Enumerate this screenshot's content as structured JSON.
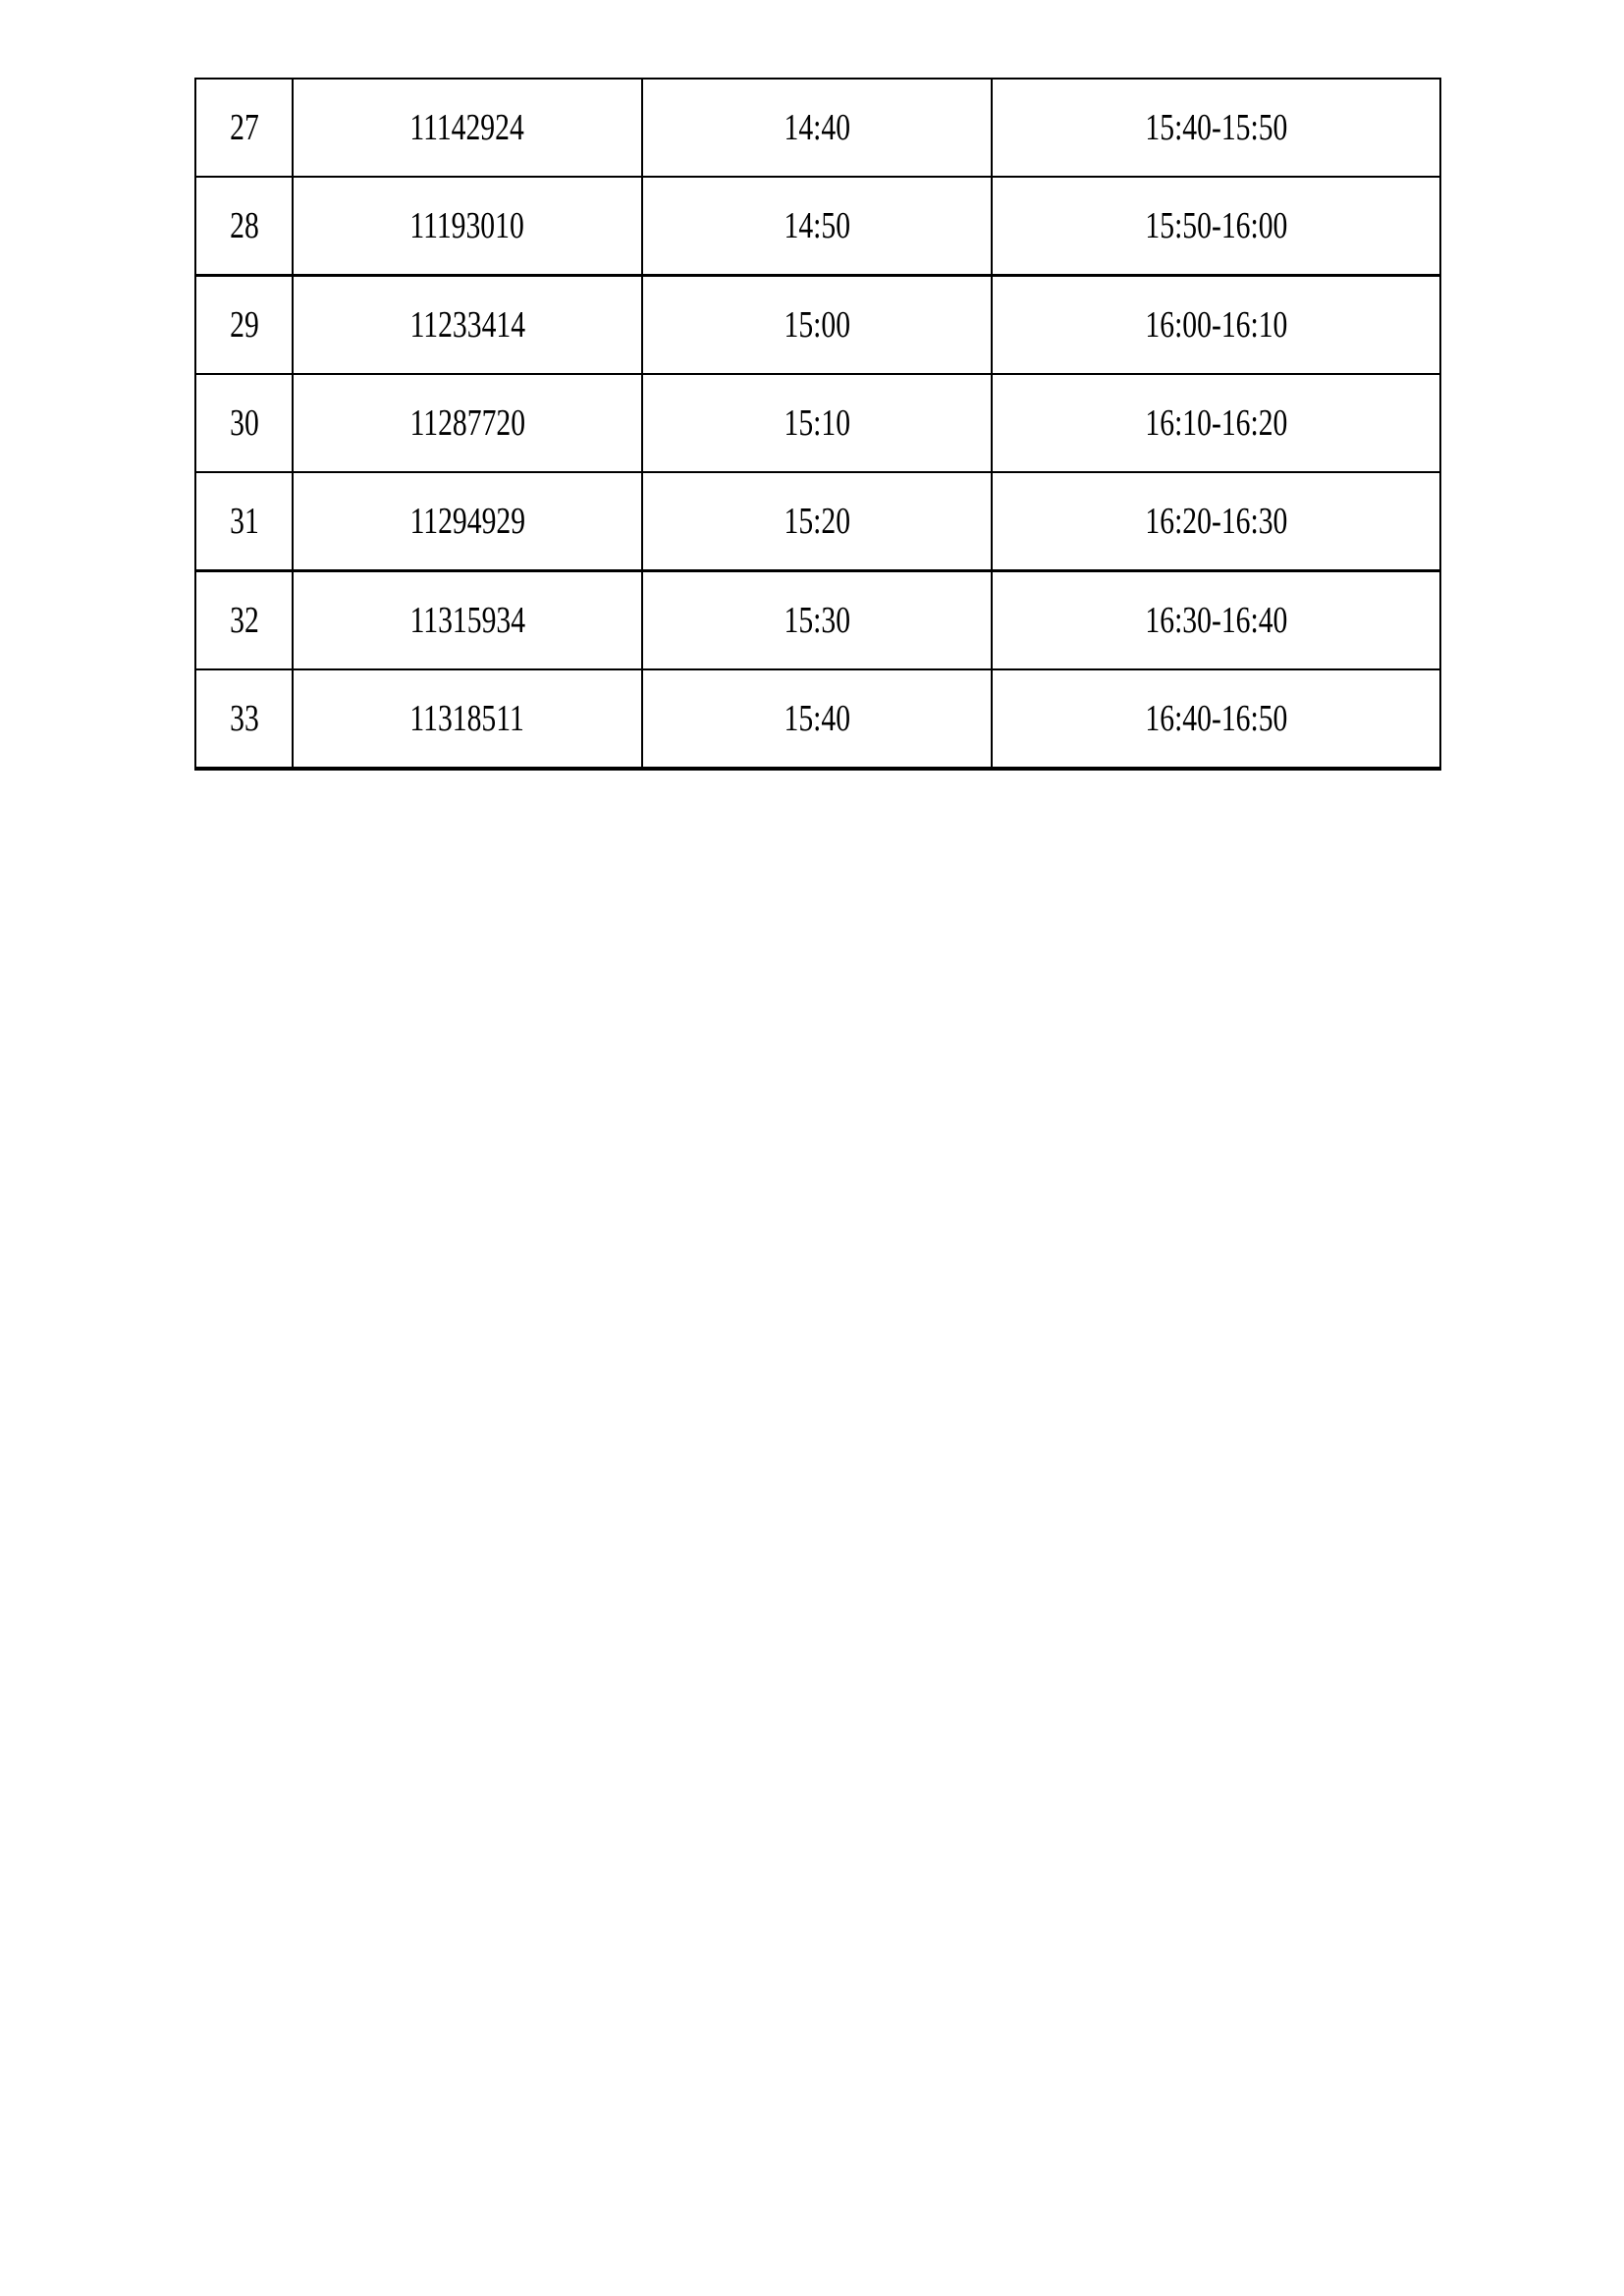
{
  "table": {
    "rows": [
      [
        "27",
        "11142924",
        "14:40",
        "15:40-15:50"
      ],
      [
        "28",
        "11193010",
        "14:50",
        "15:50-16:00"
      ],
      [
        "29",
        "11233414",
        "15:00",
        "16:00-16:10"
      ],
      [
        "30",
        "11287720",
        "15:10",
        "16:10-16:20"
      ],
      [
        "31",
        "11294929",
        "15:20",
        "16:20-16:30"
      ],
      [
        "32",
        "11315934",
        "15:30",
        "16:30-16:40"
      ],
      [
        "33",
        "11318511",
        "15:40",
        "16:40-16:50"
      ]
    ]
  }
}
